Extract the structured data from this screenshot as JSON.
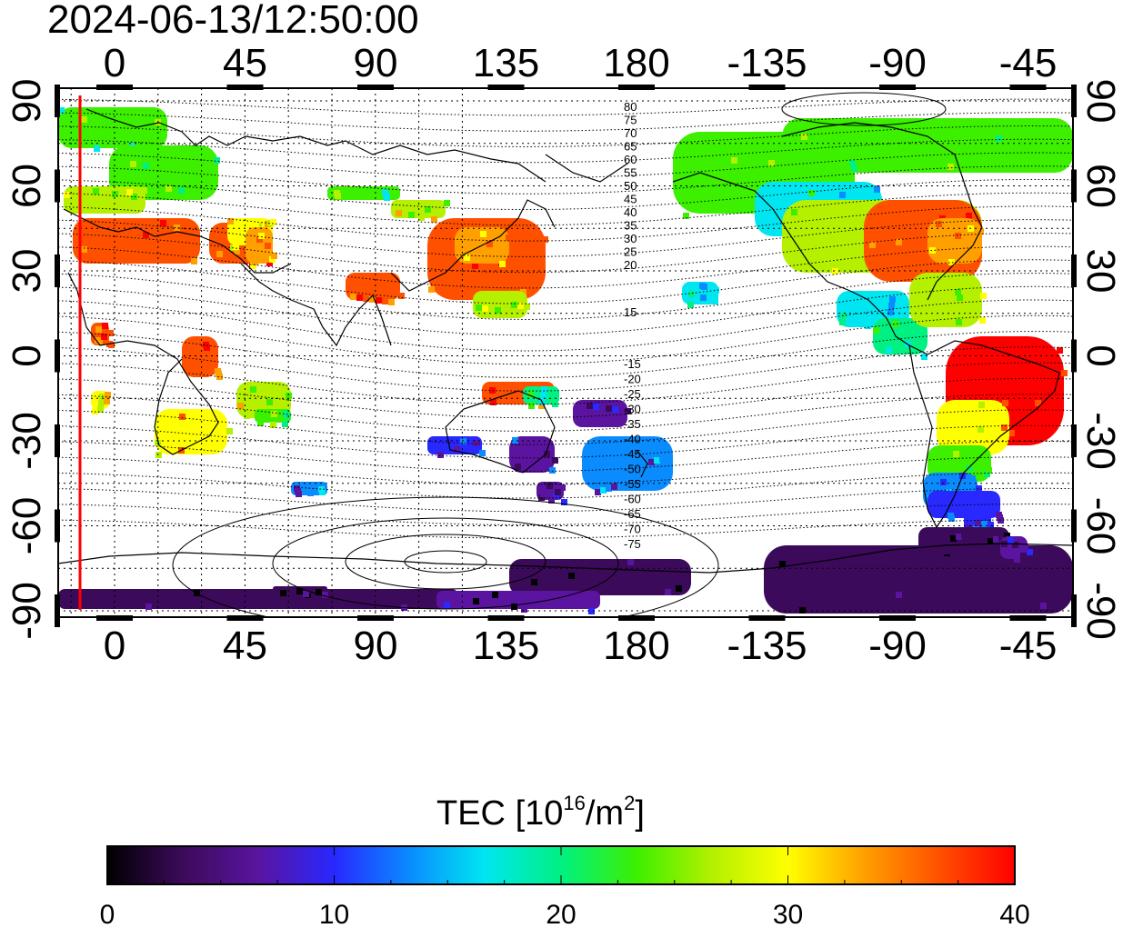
{
  "timestamp": "2024-06-13/12:50:00",
  "map": {
    "top_lon_ticks": [
      "0",
      "45",
      "90",
      "135",
      "180",
      "-135",
      "-90",
      "-45"
    ],
    "bottom_lon_ticks": [
      "0",
      "45",
      "90",
      "135",
      "180",
      "-135",
      "-90",
      "-45"
    ],
    "left_lat_ticks": [
      "90",
      "60",
      "30",
      "0",
      "-30",
      "-60",
      "-90"
    ],
    "right_lat_ticks": [
      "90",
      "60",
      "30",
      "0",
      "-30",
      "-60",
      "-90"
    ],
    "magnetic_latitude_labels_north": [
      "80",
      "75",
      "70",
      "65",
      "60",
      "55",
      "50",
      "45",
      "40",
      "35",
      "30",
      "25",
      "20",
      "15"
    ],
    "magnetic_latitude_labels_south": [
      "-15",
      "-20",
      "-25",
      "-30",
      "-35",
      "-40",
      "-45",
      "-50",
      "-55",
      "-60",
      "-65",
      "-70",
      "-75"
    ],
    "marker_line_color": "#ff0000",
    "grid": true
  },
  "colorbar": {
    "title": "TEC",
    "unit_base": "[10",
    "unit_exp1": "16",
    "unit_mid": "/m",
    "unit_exp2": "2",
    "unit_end": "]",
    "tick_labels": [
      "0",
      "10",
      "20",
      "30",
      "40"
    ],
    "min": 0,
    "max": 40,
    "colors": [
      "#000000",
      "#3c0a5a",
      "#5a14a0",
      "#2828ff",
      "#0a8cff",
      "#00e6f0",
      "#00f082",
      "#3cf000",
      "#b4f000",
      "#ffff00",
      "#ffa000",
      "#ff5000",
      "#ff0000"
    ]
  }
}
